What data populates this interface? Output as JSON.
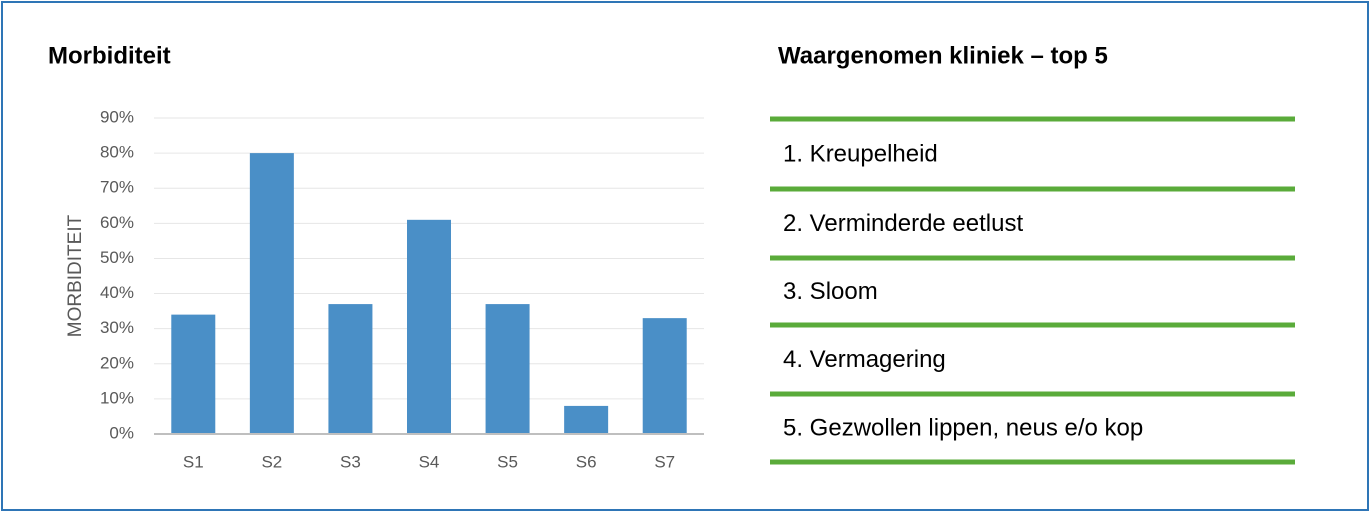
{
  "chart_data": {
    "type": "bar",
    "title": "Morbiditeit",
    "y_label": "MORBIDITEIT",
    "categories": [
      "S1",
      "S2",
      "S3",
      "S4",
      "S5",
      "S6",
      "S7"
    ],
    "values": [
      34,
      80,
      37,
      61,
      37,
      8,
      33
    ],
    "color": "#4a8fc7",
    "ylim": [
      0,
      90
    ],
    "yticks": [
      {
        "value": 0,
        "label": "0%"
      },
      {
        "value": 10,
        "label": "10%"
      },
      {
        "value": 20,
        "label": "20%"
      },
      {
        "value": 30,
        "label": "30%"
      },
      {
        "value": 40,
        "label": "40%"
      },
      {
        "value": 50,
        "label": "50%"
      },
      {
        "value": 60,
        "label": "60%"
      },
      {
        "value": 70,
        "label": "70%"
      },
      {
        "value": 80,
        "label": "80%"
      },
      {
        "value": 90,
        "label": "90%"
      }
    ],
    "grid": true
  },
  "list": {
    "title": "Waargenomen kliniek – top 5",
    "items": [
      "1. Kreupelheid",
      "2. Verminderde eetlust",
      "3. Sloom",
      "4. Vermagering",
      "5. Gezwollen lippen, neus e/o kop"
    ]
  }
}
